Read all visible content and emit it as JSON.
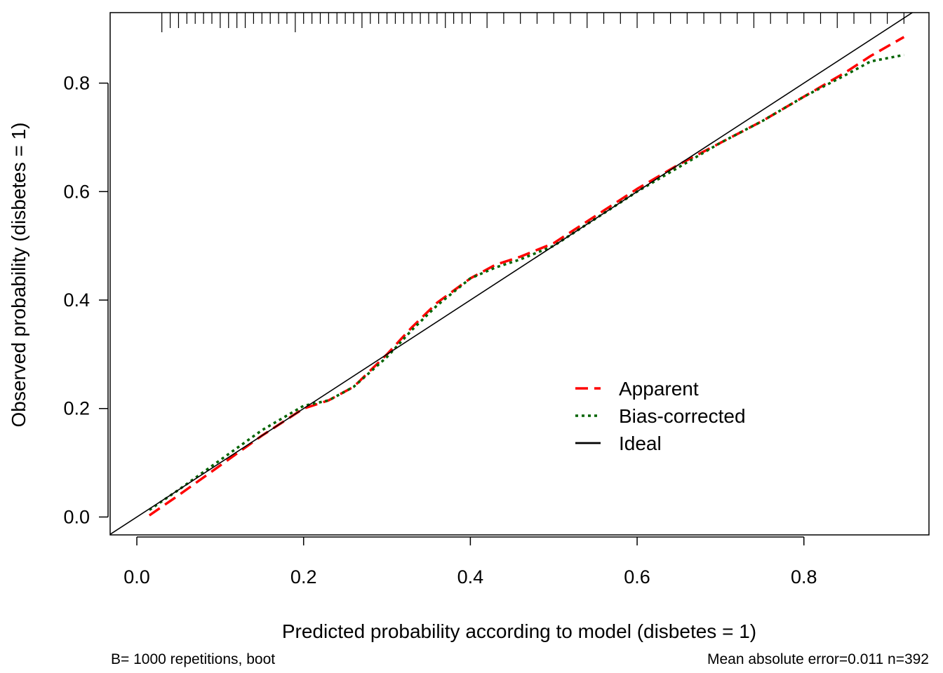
{
  "chart_data": {
    "type": "line",
    "title": "",
    "xlabel": "Predicted probability according to model (disbetes = 1)",
    "ylabel": "Observed probability (disbetes = 1)",
    "xlim": [
      -0.032,
      0.95
    ],
    "ylim": [
      -0.033,
      0.93
    ],
    "x_ticks": [
      "0.0",
      "0.2",
      "0.4",
      "0.6",
      "0.8"
    ],
    "y_ticks": [
      "0.0",
      "0.2",
      "0.4",
      "0.6",
      "0.8"
    ],
    "grid": false,
    "legend_position": "right",
    "footnote_left": "B= 1000 repetitions, boot",
    "footnote_right": "Mean absolute error=0.011 n=392",
    "series": [
      {
        "name": "Apparent",
        "color": "#ff0000",
        "style": "dashed",
        "x": [
          0.015,
          0.05,
          0.1,
          0.15,
          0.2,
          0.23,
          0.26,
          0.3,
          0.33,
          0.36,
          0.4,
          0.43,
          0.46,
          0.5,
          0.55,
          0.6,
          0.65,
          0.7,
          0.75,
          0.8,
          0.85,
          0.88,
          0.92
        ],
        "y": [
          0.003,
          0.04,
          0.095,
          0.15,
          0.2,
          0.215,
          0.24,
          0.3,
          0.35,
          0.395,
          0.44,
          0.465,
          0.48,
          0.505,
          0.555,
          0.605,
          0.65,
          0.69,
          0.73,
          0.775,
          0.82,
          0.85,
          0.885
        ]
      },
      {
        "name": "Bias-corrected",
        "color": "#006400",
        "style": "dotted",
        "x": [
          0.015,
          0.05,
          0.1,
          0.15,
          0.2,
          0.23,
          0.26,
          0.3,
          0.33,
          0.36,
          0.4,
          0.43,
          0.46,
          0.5,
          0.55,
          0.6,
          0.65,
          0.7,
          0.75,
          0.8,
          0.85,
          0.88,
          0.92
        ],
        "y": [
          0.013,
          0.05,
          0.105,
          0.16,
          0.205,
          0.215,
          0.24,
          0.295,
          0.345,
          0.39,
          0.44,
          0.46,
          0.475,
          0.5,
          0.55,
          0.6,
          0.645,
          0.69,
          0.73,
          0.775,
          0.815,
          0.84,
          0.852
        ]
      },
      {
        "name": "Ideal",
        "color": "#000000",
        "style": "solid",
        "x": [
          -0.032,
          0.95
        ],
        "y": [
          -0.032,
          0.95
        ]
      }
    ],
    "rug_x": [
      0.03,
      0.04,
      0.05,
      0.06,
      0.07,
      0.08,
      0.09,
      0.1,
      0.11,
      0.12,
      0.13,
      0.14,
      0.15,
      0.16,
      0.17,
      0.18,
      0.19,
      0.2,
      0.21,
      0.22,
      0.23,
      0.24,
      0.25,
      0.26,
      0.27,
      0.28,
      0.29,
      0.3,
      0.31,
      0.32,
      0.33,
      0.34,
      0.35,
      0.36,
      0.37,
      0.38,
      0.39,
      0.4,
      0.42,
      0.44,
      0.46,
      0.48,
      0.5,
      0.52,
      0.54,
      0.56,
      0.58,
      0.6,
      0.62,
      0.64,
      0.66,
      0.68,
      0.7,
      0.72,
      0.74,
      0.76,
      0.78,
      0.8,
      0.82,
      0.84,
      0.86,
      0.88,
      0.9,
      0.92
    ],
    "rug_heights": [
      3,
      2,
      2,
      1,
      1,
      1,
      1,
      2,
      2,
      2,
      2,
      1,
      1,
      1,
      1,
      1,
      3,
      1,
      1,
      1,
      1,
      1,
      1,
      1,
      2,
      1,
      1,
      1,
      1,
      1,
      1,
      1,
      1,
      1,
      2,
      1,
      1,
      1,
      2,
      1,
      1,
      1,
      1,
      1,
      2,
      1,
      1,
      2,
      1,
      1,
      1,
      1,
      1,
      1,
      2,
      1,
      1,
      1,
      1,
      2,
      1,
      1,
      1,
      1
    ]
  }
}
